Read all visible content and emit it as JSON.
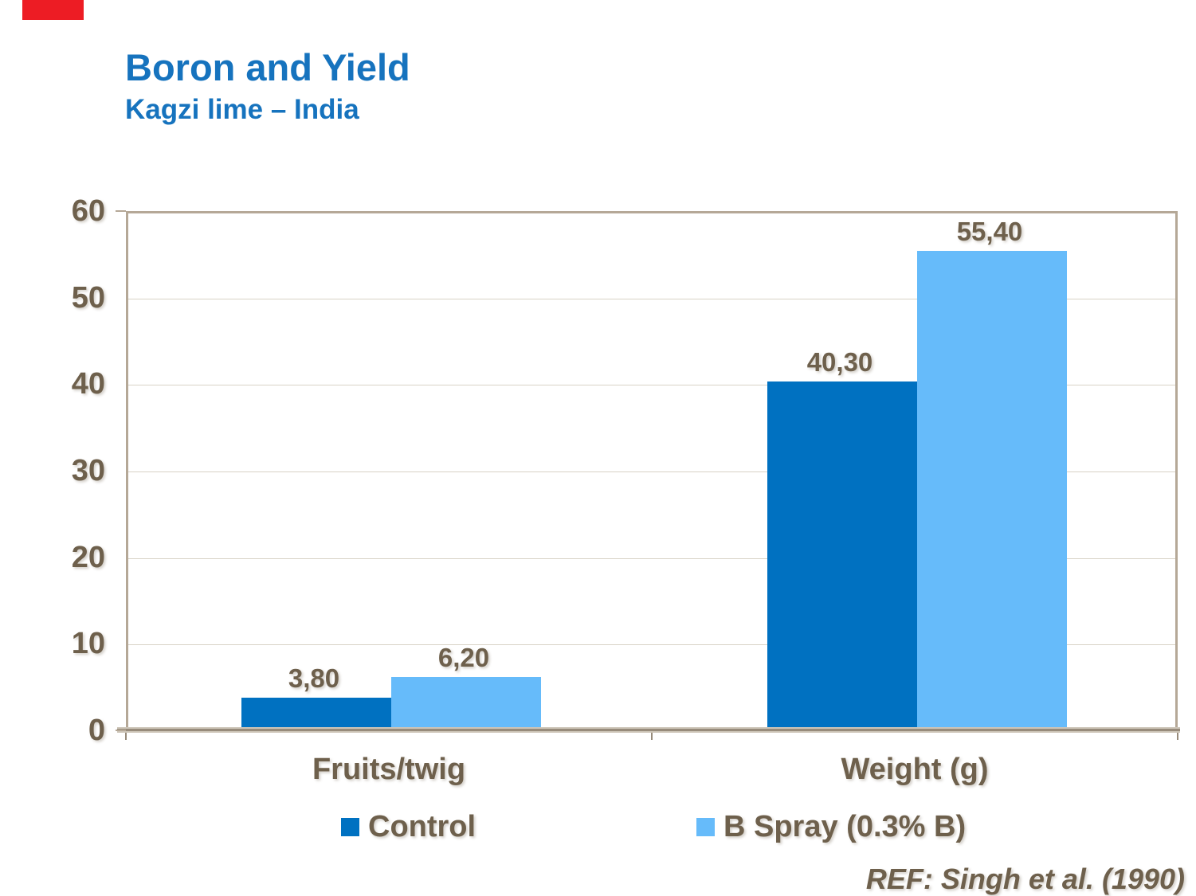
{
  "slide": {
    "title": "Boron and Yield",
    "subtitle": "Kagzi lime – India",
    "reference": "REF: Singh et al. (1990)",
    "corner_mark_color": "#ED1C24",
    "title_color": "#1673BE",
    "text_color": "#6E604C"
  },
  "chart_data": {
    "type": "bar",
    "title": "",
    "xlabel": "",
    "ylabel": "",
    "categories": [
      "Fruits/twig",
      "Weight (g)"
    ],
    "series": [
      {
        "name": "Control",
        "color": "#0071C1",
        "values": [
          3.8,
          40.3
        ],
        "value_labels": [
          "3,80",
          "40,30"
        ]
      },
      {
        "name": "B Spray (0.3% B)",
        "color": "#66BBFA",
        "values": [
          6.2,
          55.4
        ],
        "value_labels": [
          "6,20",
          "55,40"
        ]
      }
    ],
    "ylim": [
      0,
      60
    ],
    "yticks": [
      0,
      10,
      20,
      30,
      40,
      50,
      60
    ],
    "grid": true,
    "legend_position": "bottom",
    "gridline_color": "#D8D2C6",
    "axis_color": "#B5A897"
  }
}
